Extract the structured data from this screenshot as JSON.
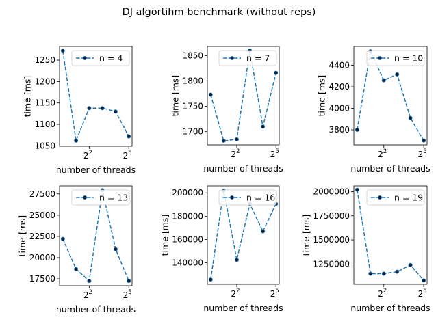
{
  "figure": {
    "title": "DJ algortihm benchmark (without reps)",
    "line_color": "#1f77b4",
    "marker_color": "#0b1f3a"
  },
  "chart_data": [
    {
      "type": "line",
      "legend": "n = 4",
      "legend_position": "top-right",
      "xscale": "log2",
      "x": [
        1,
        2,
        4,
        8,
        16,
        32
      ],
      "values": [
        1272,
        1062,
        1138,
        1138,
        1130,
        1072
      ],
      "xlabel": "number of threads",
      "ylabel": "time [ms]",
      "xticks": [
        4,
        32
      ],
      "xtick_labels": [
        "2",
        "5"
      ],
      "xtick_base": "2",
      "yticks": [
        1050,
        1100,
        1150,
        1200,
        1250
      ],
      "ytick_labels": [
        "1050",
        "1100",
        "1150",
        "1200",
        "1250"
      ],
      "ylim": [
        1049,
        1282
      ]
    },
    {
      "type": "line",
      "legend": "n = 7",
      "legend_position": "top-right",
      "xscale": "log2",
      "x": [
        1,
        2,
        4,
        8,
        16,
        32
      ],
      "values": [
        1773,
        1682,
        1685,
        1860,
        1710,
        1816
      ],
      "xlabel": "number of threads",
      "ylabel": "time [ms]",
      "xticks": [
        4,
        32
      ],
      "xtick_labels": [
        "2",
        "5"
      ],
      "xtick_base": "2",
      "yticks": [
        1700,
        1750,
        1800,
        1850
      ],
      "ytick_labels": [
        "1700",
        "1750",
        "1800",
        "1850"
      ],
      "ylim": [
        1674,
        1868
      ]
    },
    {
      "type": "line",
      "legend": "n = 10",
      "legend_position": "top-right",
      "xscale": "log2",
      "x": [
        1,
        2,
        4,
        8,
        16,
        32
      ],
      "values": [
        3800,
        4530,
        4260,
        4315,
        3910,
        3700
      ],
      "xlabel": "number of threads",
      "ylabel": "time [ms]",
      "xticks": [
        4,
        32
      ],
      "xtick_labels": [
        "2",
        "5"
      ],
      "xtick_base": "2",
      "yticks": [
        3800,
        4000,
        4200,
        4400
      ],
      "ytick_labels": [
        "3800",
        "4000",
        "4200",
        "4400"
      ],
      "ylim": [
        3660,
        4575
      ]
    },
    {
      "type": "line",
      "legend": "n = 13",
      "legend_position": "top-right",
      "xscale": "log2",
      "x": [
        1,
        2,
        4,
        8,
        16,
        32
      ],
      "values": [
        22200,
        18650,
        17250,
        27950,
        21000,
        17250
      ],
      "xlabel": "number of threads",
      "ylabel": "time [ms]",
      "xticks": [
        4,
        32
      ],
      "xtick_labels": [
        "2",
        "5"
      ],
      "xtick_base": "2",
      "yticks": [
        17500,
        20000,
        22500,
        25000,
        27500
      ],
      "ytick_labels": [
        "17500",
        "20000",
        "22500",
        "25000",
        "27500"
      ],
      "ylim": [
        16700,
        28450
      ]
    },
    {
      "type": "line",
      "legend": "n = 16",
      "legend_position": "top-right",
      "xscale": "log2",
      "x": [
        1,
        2,
        4,
        8,
        16,
        32
      ],
      "values": [
        125500,
        202000,
        142500,
        190500,
        167000,
        190500
      ],
      "xlabel": "number of threads",
      "ylabel": "time [ms]",
      "xticks": [
        4,
        32
      ],
      "xtick_labels": [
        "2",
        "5"
      ],
      "xtick_base": "2",
      "yticks": [
        140000,
        160000,
        180000,
        200000
      ],
      "ytick_labels": [
        "140000",
        "160000",
        "180000",
        "200000"
      ],
      "ylim": [
        121500,
        206000
      ]
    },
    {
      "type": "line",
      "legend": "n = 19",
      "legend_position": "top-right",
      "xscale": "log2",
      "x": [
        1,
        2,
        4,
        8,
        16,
        32
      ],
      "values": [
        2020000,
        1150000,
        1150000,
        1170000,
        1240000,
        1080000
      ],
      "xlabel": "number of threads",
      "ylabel": "time [ms]",
      "xticks": [
        4,
        32
      ],
      "xtick_labels": [
        "2",
        "5"
      ],
      "xtick_base": "2",
      "yticks": [
        1250000,
        1500000,
        1750000,
        2000000
      ],
      "ytick_labels": [
        "1250000",
        "1500000",
        "1750000",
        "2000000"
      ],
      "ylim": [
        1040000,
        2060000
      ]
    }
  ]
}
